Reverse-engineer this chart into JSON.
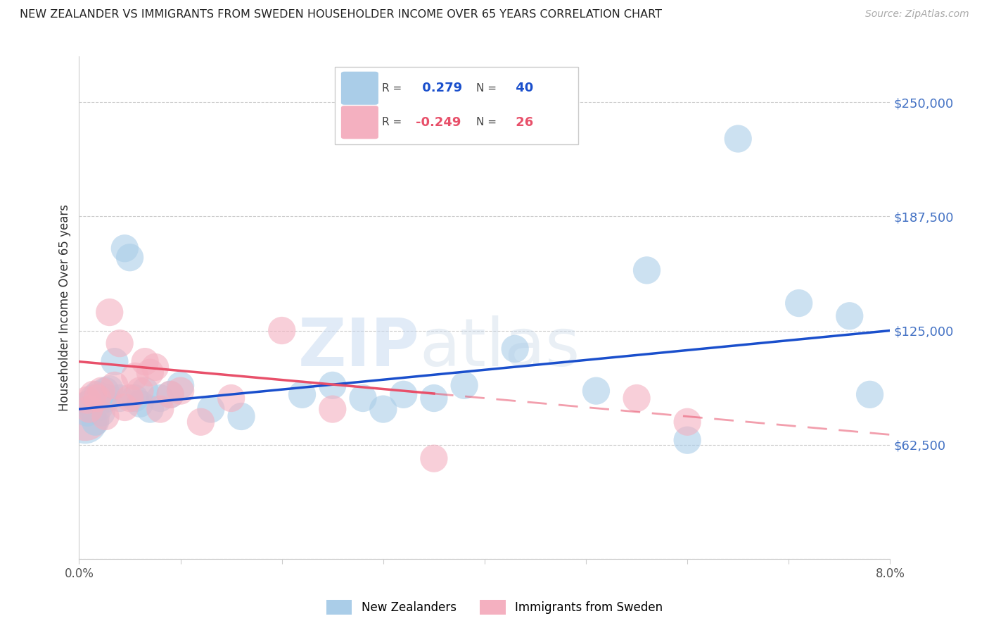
{
  "title": "NEW ZEALANDER VS IMMIGRANTS FROM SWEDEN HOUSEHOLDER INCOME OVER 65 YEARS CORRELATION CHART",
  "source": "Source: ZipAtlas.com",
  "ylabel": "Householder Income Over 65 years",
  "y_ticks": [
    0,
    62500,
    125000,
    187500,
    250000
  ],
  "y_tick_labels": [
    "",
    "$62,500",
    "$125,000",
    "$187,500",
    "$250,000"
  ],
  "x_min": 0.0,
  "x_max": 8.0,
  "y_min": 0,
  "y_max": 275000,
  "blue_R": 0.279,
  "blue_N": 40,
  "pink_R": -0.249,
  "pink_N": 26,
  "blue_color": "#aacde8",
  "pink_color": "#f4b0c0",
  "blue_line_color": "#1a4fcc",
  "pink_line_color": "#e8506a",
  "legend_label_blue": "New Zealanders",
  "legend_label_pink": "Immigrants from Sweden",
  "watermark_zip": "ZIP",
  "watermark_atlas": "atlas",
  "blue_points_x": [
    0.08,
    0.1,
    0.12,
    0.14,
    0.16,
    0.18,
    0.2,
    0.22,
    0.24,
    0.26,
    0.28,
    0.3,
    0.35,
    0.4,
    0.45,
    0.5,
    0.55,
    0.6,
    0.65,
    0.7,
    0.8,
    0.9,
    1.0,
    1.3,
    1.6,
    2.2,
    2.5,
    2.8,
    3.0,
    3.2,
    3.5,
    3.8,
    4.3,
    5.1,
    5.6,
    6.0,
    6.5,
    7.1,
    7.6,
    7.8
  ],
  "blue_points_y": [
    80000,
    85000,
    82000,
    88000,
    75000,
    90000,
    83000,
    80000,
    87000,
    92000,
    88000,
    93000,
    108000,
    88000,
    170000,
    165000,
    88000,
    85000,
    92000,
    82000,
    88000,
    90000,
    95000,
    82000,
    78000,
    90000,
    95000,
    88000,
    82000,
    90000,
    88000,
    95000,
    115000,
    92000,
    158000,
    65000,
    230000,
    140000,
    133000,
    90000
  ],
  "pink_points_x": [
    0.08,
    0.1,
    0.14,
    0.18,
    0.22,
    0.26,
    0.3,
    0.35,
    0.4,
    0.45,
    0.5,
    0.55,
    0.6,
    0.65,
    0.7,
    0.75,
    0.8,
    0.9,
    1.0,
    1.2,
    1.5,
    2.0,
    2.5,
    3.5,
    5.5,
    6.0
  ],
  "pink_points_y": [
    87000,
    82000,
    90000,
    88000,
    92000,
    78000,
    135000,
    95000,
    118000,
    83000,
    88000,
    100000,
    92000,
    108000,
    102000,
    105000,
    82000,
    90000,
    92000,
    75000,
    88000,
    125000,
    82000,
    55000,
    88000,
    75000
  ],
  "big_blue_x": 0.06,
  "big_blue_y": 75000,
  "big_blue_size": 2000,
  "big_pink_x": 0.06,
  "big_pink_y": 78000,
  "big_pink_size": 2500,
  "dot_size": 800,
  "blue_line_x0": 0.0,
  "blue_line_y0": 82000,
  "blue_line_x1": 8.0,
  "blue_line_y1": 125000,
  "pink_line_x0": 0.0,
  "pink_line_y0": 108000,
  "pink_line_x1": 8.0,
  "pink_line_y1": 68000,
  "pink_solid_end": 3.5,
  "leg_blue_R": "0.279",
  "leg_blue_N": "40",
  "leg_pink_R": "-0.249",
  "leg_pink_N": "26"
}
